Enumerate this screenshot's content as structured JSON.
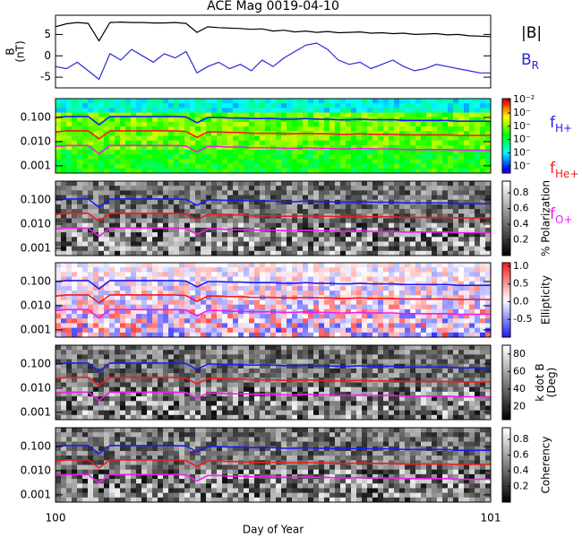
{
  "chart_data": {
    "title": "ACE Mag 0019-04-10",
    "xlabel": "Day of Year",
    "xlim": [
      100,
      101
    ],
    "xticks": [
      100,
      101
    ],
    "panels": [
      {
        "type": "line",
        "ylabel": [
          "B",
          "(nT)"
        ],
        "ylim": [
          -7.5,
          9.5
        ],
        "yticks": [
          -5,
          0,
          5
        ],
        "x": [
          100,
          100.025,
          100.05,
          100.075,
          100.1,
          100.125,
          100.15,
          100.175,
          100.2,
          100.225,
          100.25,
          100.275,
          100.3,
          100.325,
          100.35,
          100.375,
          100.4,
          100.425,
          100.45,
          100.475,
          100.5,
          100.525,
          100.55,
          100.575,
          100.6,
          100.625,
          100.65,
          100.675,
          100.7,
          100.725,
          100.75,
          100.775,
          100.8,
          100.825,
          100.85,
          100.875,
          100.9,
          100.925,
          100.95,
          100.975,
          101
        ],
        "series": [
          {
            "name": "|B|",
            "color": "#000000",
            "values": [
              6.8,
              7.5,
              7.8,
              7.6,
              3.5,
              7.8,
              7.9,
              7.8,
              7.8,
              7.7,
              7.7,
              7.8,
              7.6,
              5.5,
              6.8,
              6.6,
              6.5,
              6.4,
              6.2,
              6.3,
              5.8,
              6.0,
              5.6,
              5.8,
              5.5,
              5.7,
              5.4,
              5.5,
              5.6,
              5.3,
              5.4,
              5.2,
              5.3,
              5.0,
              5.1,
              5.2,
              4.9,
              5.0,
              4.7,
              4.6,
              4.5
            ]
          },
          {
            "name": "B",
            "subscript": "R",
            "color": "#2a2ad8",
            "values": [
              -2.5,
              -3.0,
              -1.5,
              -3.5,
              -5.5,
              0.5,
              -1.0,
              1.5,
              0.0,
              -1.5,
              0.5,
              -0.5,
              1.0,
              -4.0,
              -2.5,
              -1.5,
              -3.0,
              -2.0,
              -3.5,
              -1.0,
              -2.5,
              -0.5,
              1.0,
              2.5,
              3.0,
              1.5,
              -1.0,
              -2.0,
              -1.5,
              -3.0,
              -2.0,
              -1.0,
              -2.5,
              -3.5,
              -3.0,
              -2.0,
              -2.5,
              -3.0,
              -3.5,
              -4.0,
              -4.0
            ]
          }
        ]
      },
      {
        "type": "spectrogram",
        "colormap": "rainbow",
        "clog": true,
        "clim": [
          3e-08,
          0.012
        ],
        "cticks": [
          {
            "value": 0.01,
            "label": "10⁻²"
          },
          {
            "value": 0.001,
            "label": "10⁻"
          },
          {
            "value": 0.0001,
            "label": "10⁻"
          },
          {
            "value": 1e-05,
            "label": "10⁻"
          },
          {
            "value": 1e-06,
            "label": "10⁻"
          },
          {
            "value": 1e-07,
            "label": "10⁻"
          }
        ],
        "ylim": [
          0.0005,
          0.6
        ],
        "ylog": true,
        "yticks": [
          {
            "value": 0.001,
            "label": "0.001"
          },
          {
            "value": 0.01,
            "label": "0.010"
          },
          {
            "value": 0.1,
            "label": "0.100"
          }
        ]
      },
      {
        "type": "spectrogram",
        "colormap": "gray",
        "clim": [
          0,
          0.95
        ],
        "cticks": [
          0.2,
          0.4,
          0.6,
          0.8
        ],
        "clabel": [
          "% Polarization"
        ],
        "ylim": [
          0.0005,
          0.6
        ],
        "ylog": true,
        "yticks": [
          {
            "value": 0.001,
            "label": "0.001"
          },
          {
            "value": 0.01,
            "label": "0.010"
          },
          {
            "value": 0.1,
            "label": "0.100"
          }
        ]
      },
      {
        "type": "spectrogram",
        "colormap": "bwr",
        "clim": [
          -1,
          1.1
        ],
        "cticks": [
          -0.5,
          {
            "value": 0,
            "label": "0.0"
          },
          0.5,
          {
            "value": 1,
            "label": "1.0"
          }
        ],
        "clabel": [
          "Ellipticity"
        ],
        "ylim": [
          0.0005,
          0.6
        ],
        "ylog": true,
        "yticks": [
          {
            "value": 0.001,
            "label": "0.001"
          },
          {
            "value": 0.01,
            "label": "0.010"
          },
          {
            "value": 0.1,
            "label": "0.100"
          }
        ]
      },
      {
        "type": "spectrogram",
        "colormap": "gray",
        "clim": [
          5,
          90
        ],
        "cticks": [
          20,
          40,
          60,
          80
        ],
        "clabel": [
          "k dot B",
          "(Deg)"
        ],
        "ylim": [
          0.0005,
          0.6
        ],
        "ylog": true,
        "yticks": [
          {
            "value": 0.001,
            "label": "0.001"
          },
          {
            "value": 0.01,
            "label": "0.010"
          },
          {
            "value": 0.1,
            "label": "0.100"
          }
        ]
      },
      {
        "type": "spectrogram",
        "colormap": "gray",
        "clim": [
          0,
          0.95
        ],
        "cticks": [
          0.2,
          0.4,
          0.6,
          0.8
        ],
        "clabel": [
          "Coherency"
        ],
        "ylim": [
          0.0005,
          0.6
        ],
        "ylog": true,
        "yticks": [
          {
            "value": 0.001,
            "label": "0.001"
          },
          {
            "value": 0.01,
            "label": "0.010"
          },
          {
            "value": 0.1,
            "label": "0.100"
          }
        ]
      }
    ],
    "frequency_lines": {
      "x": [
        100,
        100.025,
        100.05,
        100.075,
        100.1,
        100.125,
        100.15,
        100.175,
        100.2,
        100.225,
        100.25,
        100.275,
        100.3,
        100.325,
        100.35,
        100.375,
        100.4,
        100.425,
        100.45,
        100.475,
        100.5,
        100.525,
        100.55,
        100.575,
        100.6,
        100.625,
        100.65,
        100.675,
        100.7,
        100.725,
        100.75,
        100.775,
        100.8,
        100.825,
        100.85,
        100.875,
        100.9,
        100.925,
        100.95,
        100.975,
        101
      ],
      "series": [
        {
          "name": "f",
          "subscript": "H+",
          "color": "#1c1cf0",
          "values": [
            0.1,
            0.11,
            0.11,
            0.11,
            0.05,
            0.11,
            0.11,
            0.11,
            0.11,
            0.11,
            0.11,
            0.11,
            0.105,
            0.06,
            0.1,
            0.1,
            0.095,
            0.095,
            0.09,
            0.09,
            0.09,
            0.085,
            0.085,
            0.09,
            0.085,
            0.085,
            0.08,
            0.08,
            0.085,
            0.08,
            0.08,
            0.08,
            0.075,
            0.075,
            0.075,
            0.075,
            0.075,
            0.07,
            0.07,
            0.07,
            0.07
          ]
        },
        {
          "name": "f",
          "subscript": "He+",
          "color": "#f01c1c",
          "values": [
            0.025,
            0.028,
            0.028,
            0.028,
            0.013,
            0.028,
            0.028,
            0.028,
            0.028,
            0.028,
            0.028,
            0.028,
            0.026,
            0.015,
            0.025,
            0.025,
            0.024,
            0.024,
            0.022,
            0.022,
            0.022,
            0.021,
            0.021,
            0.022,
            0.021,
            0.021,
            0.02,
            0.02,
            0.021,
            0.02,
            0.02,
            0.02,
            0.019,
            0.019,
            0.019,
            0.019,
            0.019,
            0.018,
            0.018,
            0.018,
            0.018
          ]
        },
        {
          "name": "f",
          "subscript": "O+",
          "color": "#f01cf0",
          "values": [
            0.0063,
            0.0069,
            0.0069,
            0.0069,
            0.0031,
            0.0069,
            0.0069,
            0.0069,
            0.0069,
            0.0069,
            0.0069,
            0.0069,
            0.0066,
            0.0038,
            0.0063,
            0.0063,
            0.0059,
            0.0059,
            0.0056,
            0.0056,
            0.0056,
            0.0053,
            0.0053,
            0.0056,
            0.0053,
            0.0053,
            0.005,
            0.005,
            0.0053,
            0.005,
            0.005,
            0.005,
            0.0047,
            0.0047,
            0.0047,
            0.0047,
            0.0047,
            0.0044,
            0.0044,
            0.0044,
            0.0044
          ]
        }
      ]
    }
  }
}
